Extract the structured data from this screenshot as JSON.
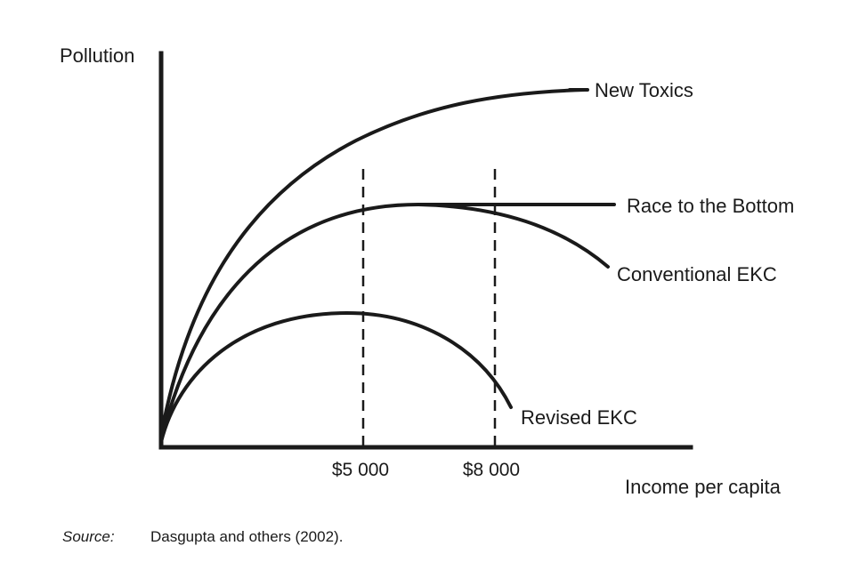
{
  "diagram": {
    "y_axis_label": "Pollution",
    "x_axis_label": "Income per capita",
    "x_ticks": [
      "$5 000",
      "$8 000"
    ],
    "curves": [
      {
        "id": "new-toxics",
        "label": "New Toxics"
      },
      {
        "id": "race-to-bottom",
        "label": "Race to the Bottom"
      },
      {
        "id": "conventional-ekc",
        "label": "Conventional EKC"
      },
      {
        "id": "revised-ekc",
        "label": "Revised EKC"
      }
    ],
    "source_label": "Source:",
    "source_text": "Dasgupta and others (2002)."
  }
}
